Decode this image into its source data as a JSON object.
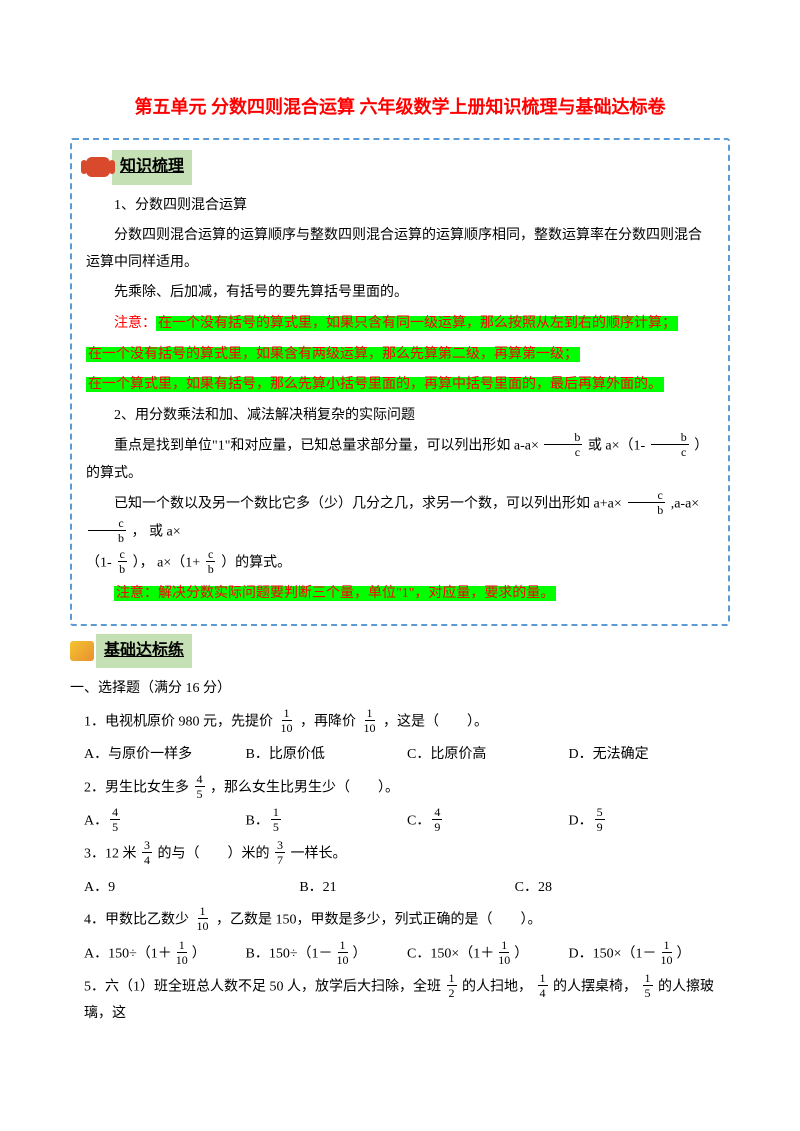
{
  "title": "第五单元 分数四则混合运算 六年级数学上册知识梳理与基础达标卷",
  "section1_label": "知识梳理",
  "section2_label": "基础达标练",
  "knowledge": {
    "h1": "1、分数四则混合运算",
    "p1": "分数四则混合运算的运算顺序与整数四则混合运算的运算顺序相同，整数运算率在分数四则混合运算中同样适用。",
    "p2": "先乘除、后加减，有括号的要先算括号里面的。",
    "note_prefix": "注意：",
    "note1": "在一个没有括号的算式里，如果只含有同一级运算，那么按照从左到右的顺序计算；",
    "note2": "在一个没有括号的算式里，如果含有两级运算，那么先算第二级，再算第一级；",
    "note3": "在一个算式里，如果有括号，那么先算小括号里面的，再算中括号里面的，最后再算外面的。",
    "h2": "2、用分数乘法和加、减法解决稍复杂的实际问题",
    "p3a": "重点是找到单位\"1\"和对应量，已知总量求部分量，可以列出形如 a-a×",
    "p3b": "或 a×（1-",
    "p3c": "）的算式。",
    "p4a": "已知一个数以及另一个数比它多（少）几分之几，求另一个数，可以列出形如 a+a×",
    "p4b": ",a-a×",
    "p4c": "， 或 a×",
    "p5a": "（1-",
    "p5b": "）， a×（1+",
    "p5c": "）的算式。",
    "note4": "注意：解决分数实际问题要判断三个量，单位\"1\"，对应量，要求的量。",
    "frac_bc_num": "b",
    "frac_bc_den": "c",
    "frac_cb_num": "c",
    "frac_cb_den": "b"
  },
  "practice": {
    "section_head": "一、选择题（满分 16 分）",
    "q1": {
      "stem_a": "1．电视机原价 980 元，先提价",
      "stem_b": "，再降价",
      "stem_c": "，这是（　　）。",
      "f_num": "1",
      "f_den": "10",
      "A": "A．与原价一样多",
      "B": "B．比原价低",
      "C": "C．比原价高",
      "D": "D．无法确定"
    },
    "q2": {
      "stem_a": "2．男生比女生多",
      "stem_b": "，那么女生比男生少（　　）。",
      "f_num": "4",
      "f_den": "5",
      "A_pre": "A．",
      "A_num": "4",
      "A_den": "5",
      "B_pre": "B．",
      "B_num": "1",
      "B_den": "5",
      "C_pre": "C．",
      "C_num": "4",
      "C_den": "9",
      "D_pre": "D．",
      "D_num": "5",
      "D_den": "9"
    },
    "q3": {
      "stem_a": "3．12 米",
      "stem_b": "的与（　　）米的",
      "stem_c": "一样长。",
      "f1_num": "3",
      "f1_den": "4",
      "f2_num": "3",
      "f2_den": "7",
      "A": "A．9",
      "B": "B．21",
      "C": "C．28"
    },
    "q4": {
      "stem_a": "4．甲数比乙数少",
      "stem_b": "，乙数是 150，甲数是多少，列式正确的是（　　）。",
      "f_num": "1",
      "f_den": "10",
      "A_pre": "A．150÷（1＋",
      "A_suf": "）",
      "B_pre": "B．150÷（1－",
      "B_suf": "）",
      "C_pre": "C．150×（1＋",
      "C_suf": "）",
      "D_pre": "D．150×（1－",
      "D_suf": "）"
    },
    "q5": {
      "stem_a": "5．六（1）班全班总人数不足 50 人，放学后大扫除，全班",
      "stem_b": "的人扫地，",
      "stem_c": "的人摆桌椅，",
      "stem_d": "的人擦玻璃，这",
      "f1_num": "1",
      "f1_den": "2",
      "f2_num": "1",
      "f2_den": "4",
      "f3_num": "1",
      "f3_den": "5"
    }
  }
}
